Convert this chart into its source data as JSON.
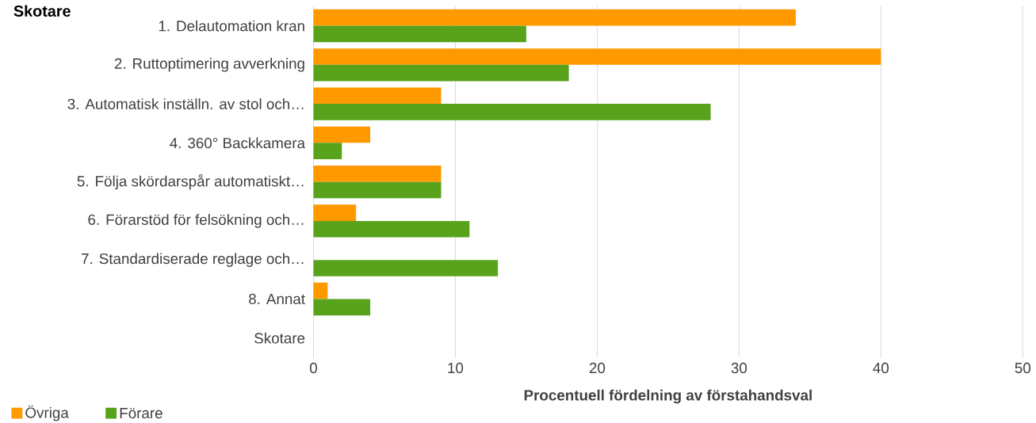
{
  "chart_data": {
    "type": "bar",
    "orientation": "horizontal",
    "title": "Skotare",
    "xlabel": "Procentuell fördelning av förstahandsval",
    "categories": [
      "1. Delautomation kran",
      "2. Ruttoptimering avverkning",
      "3. Automatisk inställn. av stol och…",
      "4. 360° Backkamera",
      "5. Följa skördarspår automatiskt…",
      "6. Förarstöd för felsökning och…",
      "7. Standardiserade reglage och…",
      "8. Annat",
      "Skotare"
    ],
    "series": [
      {
        "name": "Övriga",
        "color": "#ff9900",
        "values": [
          34,
          40,
          9,
          4,
          9,
          3,
          null,
          1,
          null
        ]
      },
      {
        "name": "Förare",
        "color": "#58a21c",
        "values": [
          15,
          18,
          28,
          2,
          9,
          11,
          13,
          4,
          null
        ]
      }
    ],
    "xlim": [
      0,
      50
    ],
    "xticks": [
      0,
      10,
      20,
      30,
      40,
      50
    ],
    "grid": "x",
    "legend": "bottom left"
  }
}
